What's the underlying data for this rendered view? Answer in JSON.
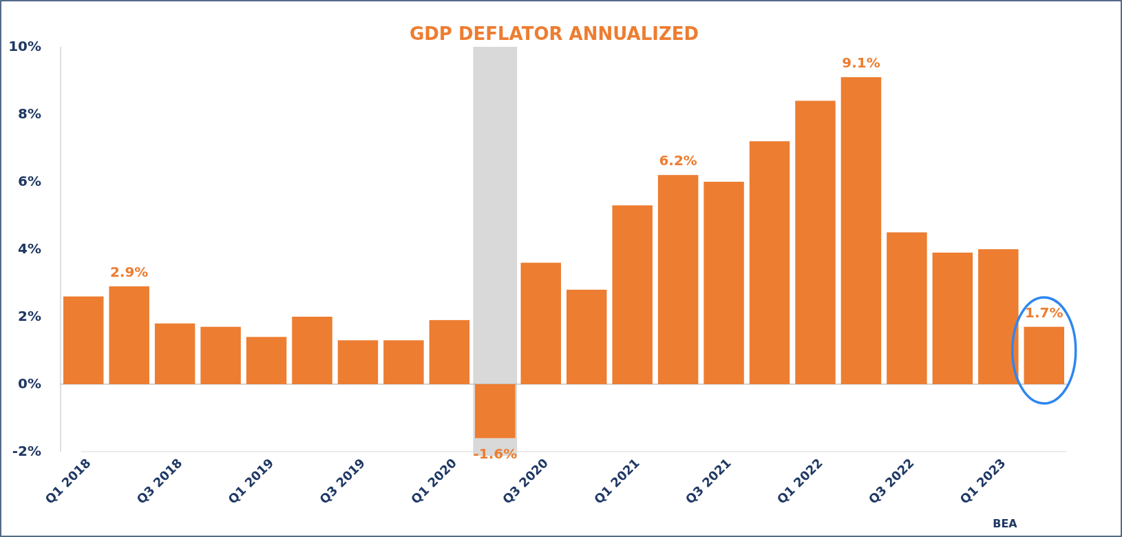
{
  "chart_data": {
    "type": "bar",
    "title": "GDP DEFLATOR ANNUALIZED",
    "categories": [
      "Q1 2018",
      null,
      "Q3 2018",
      null,
      "Q1 2019",
      null,
      "Q3 2019",
      null,
      "Q1 2020",
      null,
      "Q3 2020",
      null,
      "Q1 2021",
      null,
      "Q3 2021",
      null,
      "Q1 2022",
      null,
      "Q3 2022",
      null,
      "Q1 2023",
      null
    ],
    "values": [
      2.6,
      2.9,
      1.8,
      1.7,
      1.4,
      2.0,
      1.3,
      1.3,
      1.9,
      -1.6,
      3.6,
      2.8,
      5.3,
      6.2,
      6.0,
      7.2,
      8.4,
      9.1,
      4.5,
      3.9,
      4.0,
      1.7
    ],
    "value_labels": [
      null,
      "2.9%",
      null,
      null,
      null,
      null,
      null,
      null,
      null,
      "-1.6%",
      null,
      null,
      null,
      "6.2%",
      null,
      null,
      null,
      "9.1%",
      null,
      null,
      null,
      "1.7%"
    ],
    "color": "#ed7d31",
    "ylim": [
      -2,
      10
    ],
    "yticks": [
      {
        "value": -2,
        "label": "-2%"
      },
      {
        "value": 0,
        "label": "0%"
      },
      {
        "value": 2,
        "label": "2%"
      },
      {
        "value": 4,
        "label": "4%"
      },
      {
        "value": 6,
        "label": "6%"
      },
      {
        "value": 8,
        "label": "8%"
      },
      {
        "value": 10,
        "label": "10%"
      }
    ],
    "annotations": [
      "BEA"
    ]
  }
}
